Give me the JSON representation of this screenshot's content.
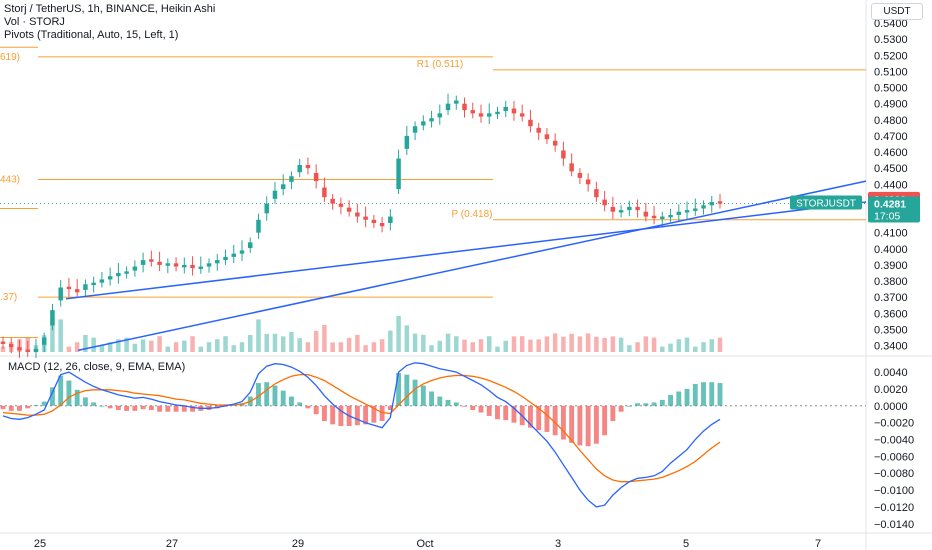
{
  "legend": {
    "line1": "Storj / TetherUS, 1h, BINANCE, Heikin Ashi",
    "line2": "Vol · STORJ",
    "line3": "Pivots (Traditional, Auto, 15, Left, 1)"
  },
  "currency_button": "USDT",
  "macd_legend": "MACD (12, 26, close, 9, EMA, EMA)",
  "colors": {
    "up": "#26a69a",
    "down": "#ef5350",
    "pivot": "#f7a035",
    "trendline": "#2962ff",
    "macd": "#2962ff",
    "signal": "#ff6d00",
    "axis_text": "#131722"
  },
  "chart_data": [
    {
      "type": "candlestick",
      "title": "Storj / TetherUS, 1h, BINANCE, Heikin Ashi",
      "price_axis": {
        "ticks": [
          "0.5400",
          "0.5300",
          "0.5200",
          "0.5100",
          "0.5000",
          "0.4900",
          "0.4800",
          "0.4700",
          "0.4600",
          "0.4500",
          "0.4400",
          "0.4300",
          "0.4200",
          "0.4100",
          "0.4000",
          "0.3900",
          "0.3800",
          "0.3700",
          "0.3600",
          "0.3500",
          "0.3400"
        ],
        "ylim": [
          0.336,
          0.545
        ]
      },
      "time_axis": {
        "ticks": [
          "25",
          "27",
          "29",
          "Oct",
          "3",
          "5",
          "7"
        ]
      },
      "pivot_labels": [
        {
          "label": "619)",
          "value": 0.519
        },
        {
          "label": "R1 (0.511)",
          "value": 0.511
        },
        {
          "label": "443)",
          "value": 0.443
        },
        {
          "label": "P (0.418)",
          "value": 0.418
        },
        {
          "label": ".37)",
          "value": 0.37
        }
      ],
      "price_labels": [
        {
          "label": "0.4310",
          "value": 0.431,
          "color": "#ef5350"
        },
        {
          "label": "STORJUSDT",
          "value": 0.4281,
          "color": "#26a69a"
        },
        {
          "label": "0.4281",
          "value": 0.4281,
          "color": "#26a69a"
        },
        {
          "label": "17:05",
          "value": 0.4281,
          "color": "#26a69a"
        }
      ],
      "series": {
        "close": [
          0.341,
          0.339,
          0.337,
          0.336,
          0.338,
          0.345,
          0.362,
          0.376,
          0.375,
          0.373,
          0.378,
          0.379,
          0.381,
          0.383,
          0.385,
          0.386,
          0.389,
          0.393,
          0.392,
          0.39,
          0.391,
          0.389,
          0.39,
          0.388,
          0.389,
          0.391,
          0.393,
          0.395,
          0.397,
          0.399,
          0.404,
          0.418,
          0.428,
          0.436,
          0.44,
          0.445,
          0.452,
          0.45,
          0.442,
          0.432,
          0.428,
          0.426,
          0.423,
          0.42,
          0.418,
          0.416,
          0.414,
          0.42,
          0.456,
          0.47,
          0.476,
          0.479,
          0.481,
          0.484,
          0.49,
          0.492,
          0.486,
          0.484,
          0.482,
          0.484,
          0.485,
          0.488,
          0.484,
          0.482,
          0.476,
          0.472,
          0.468,
          0.464,
          0.456,
          0.448,
          0.444,
          0.44,
          0.432,
          0.427,
          0.423,
          0.424,
          0.426,
          0.424,
          0.42,
          0.419,
          0.42,
          0.421,
          0.423,
          0.424,
          0.425,
          0.427,
          0.429,
          0.428
        ]
      }
    },
    {
      "type": "macd",
      "title": "MACD (12, 26, close, 9, EMA, EMA)",
      "value_axis": {
        "ticks": [
          "0.0040",
          "0.0020",
          "0.0000",
          "−0.0020",
          "−0.0040",
          "−0.0060",
          "−0.0080",
          "−0.0100",
          "−0.0120",
          "−0.0140"
        ],
        "ylim": [
          -0.0145,
          0.0052
        ]
      },
      "series": [
        {
          "name": "MACD",
          "values": [
            -0.0012,
            -0.0015,
            -0.0016,
            -0.0014,
            -0.001,
            -0.0005,
            0.0016,
            0.0037,
            0.004,
            0.0034,
            0.0028,
            0.0023,
            0.0019,
            0.0016,
            0.0013,
            0.0011,
            0.0009,
            0.001,
            0.0008,
            0.0005,
            0.0003,
            0.0001,
            0.0,
            -0.0002,
            -0.0003,
            -0.0003,
            -0.0002,
            0.0,
            0.0002,
            0.0005,
            0.0016,
            0.0038,
            0.0047,
            0.005,
            0.0049,
            0.0046,
            0.0041,
            0.0034,
            0.0024,
            0.0012,
            0.0002,
            -0.0006,
            -0.0012,
            -0.0016,
            -0.002,
            -0.0023,
            -0.0026,
            -0.0014,
            0.004,
            0.0048,
            0.0051,
            0.005,
            0.0047,
            0.0044,
            0.0042,
            0.004,
            0.0035,
            0.003,
            0.0025,
            0.0018,
            0.001,
            0.0005,
            -0.0003,
            -0.0012,
            -0.0022,
            -0.0032,
            -0.0042,
            -0.0055,
            -0.007,
            -0.0085,
            -0.01,
            -0.0112,
            -0.012,
            -0.0118,
            -0.0106,
            -0.0097,
            -0.009,
            -0.0086,
            -0.0085,
            -0.0083,
            -0.0078,
            -0.0068,
            -0.006,
            -0.0052,
            -0.004,
            -0.003,
            -0.0022,
            -0.0016
          ]
        },
        {
          "name": "Signal",
          "values": [
            -0.0008,
            -0.0009,
            -0.001,
            -0.0011,
            -0.0011,
            -0.001,
            -0.0006,
            0.0001,
            0.001,
            0.0015,
            0.0018,
            0.0019,
            0.0019,
            0.0019,
            0.0018,
            0.0017,
            0.0015,
            0.0014,
            0.0013,
            0.0012,
            0.001,
            0.0008,
            0.0007,
            0.0005,
            0.0003,
            0.0002,
            0.0001,
            0.0001,
            0.0001,
            0.0002,
            0.0005,
            0.0011,
            0.0019,
            0.0026,
            0.0031,
            0.0035,
            0.0037,
            0.0037,
            0.0034,
            0.003,
            0.0024,
            0.0018,
            0.0012,
            0.0007,
            0.0002,
            -0.0003,
            -0.0008,
            -0.0009,
            0.0001,
            0.0011,
            0.002,
            0.0026,
            0.003,
            0.0033,
            0.0035,
            0.0036,
            0.0036,
            0.0035,
            0.0033,
            0.003,
            0.0026,
            0.0022,
            0.0017,
            0.0011,
            0.0004,
            -0.0003,
            -0.0011,
            -0.002,
            -0.003,
            -0.0041,
            -0.0053,
            -0.0064,
            -0.0075,
            -0.0083,
            -0.0088,
            -0.009,
            -0.009,
            -0.0089,
            -0.0088,
            -0.0087,
            -0.0085,
            -0.0081,
            -0.0077,
            -0.0072,
            -0.0066,
            -0.0058,
            -0.005,
            -0.0043
          ]
        }
      ]
    }
  ]
}
